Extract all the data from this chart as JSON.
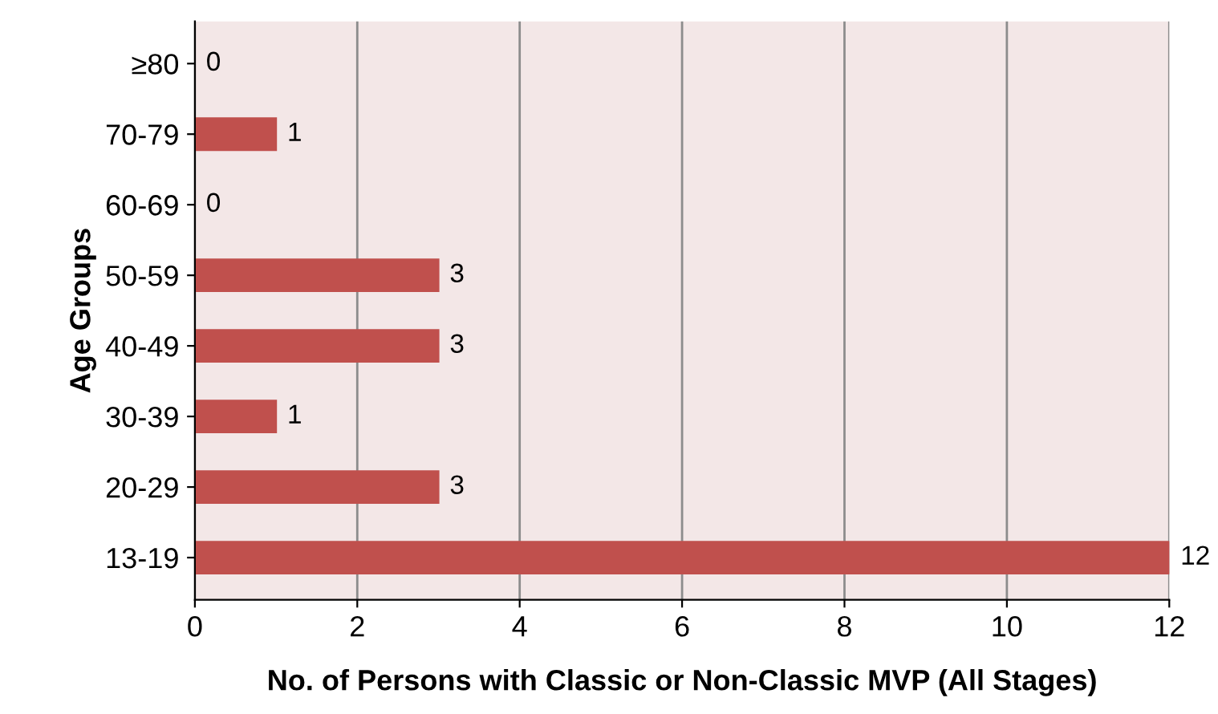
{
  "chart_data": {
    "type": "bar",
    "orientation": "horizontal",
    "xlabel": "No. of Persons with Classic or Non-Classic MVP (All Stages)",
    "ylabel": "Age Groups",
    "categories": [
      "≥80",
      "70-79",
      "60-69",
      "50-59",
      "40-49",
      "30-39",
      "20-29",
      "13-19"
    ],
    "values": [
      0,
      1,
      0,
      3,
      3,
      1,
      3,
      12
    ],
    "color": "#c0504d",
    "xlim": [
      0,
      12
    ],
    "xticks": [
      0,
      2,
      4,
      6,
      8,
      10,
      12
    ],
    "grid": "x",
    "data_labels": true
  }
}
